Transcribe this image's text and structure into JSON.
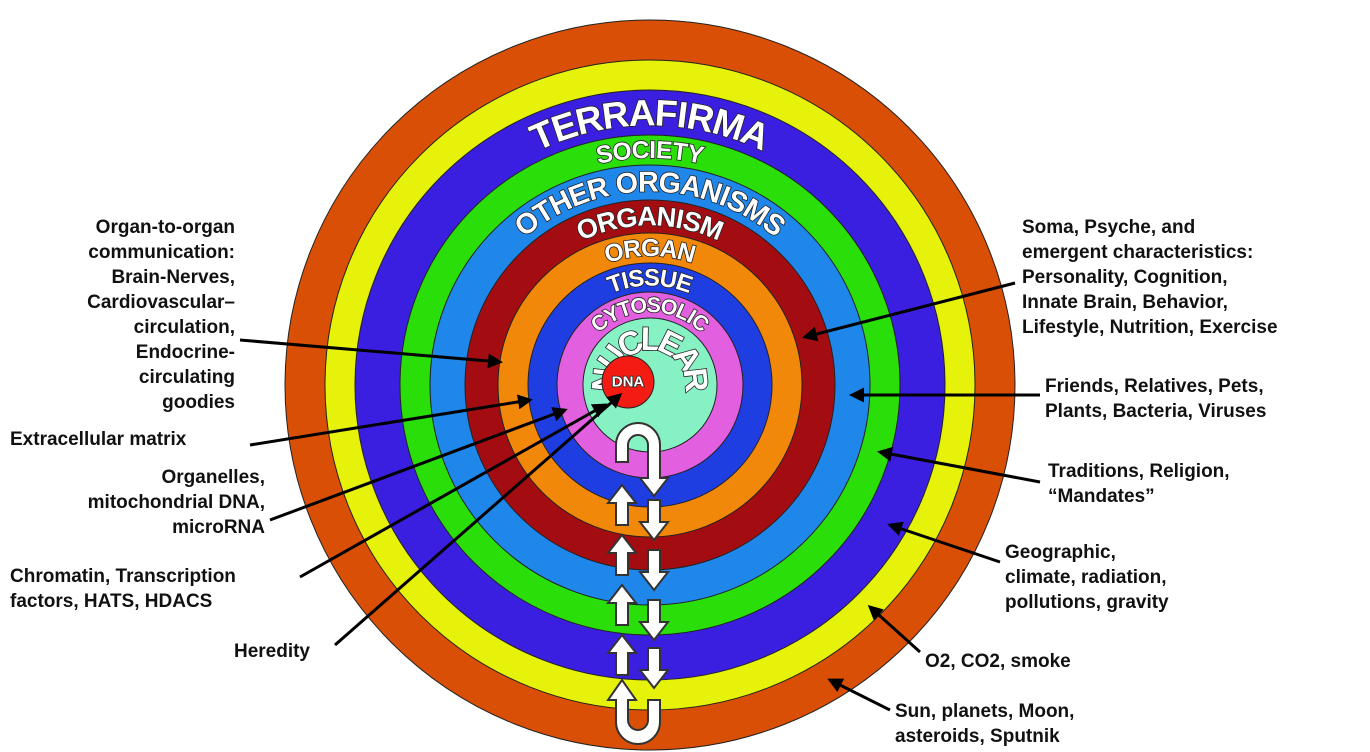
{
  "rings": [
    {
      "color": "#d94f06"
    },
    {
      "color": "#e6f20a"
    },
    {
      "label": "TERRAFIRMA",
      "color": "#3b1fe0"
    },
    {
      "label": "SOCIETY",
      "color": "#2ade0a"
    },
    {
      "label": "OTHER ORGANISMS",
      "color": "#1f86ea"
    },
    {
      "label": "ORGANISM",
      "color": "#a30d12"
    },
    {
      "label": "ORGAN",
      "color": "#f2880a"
    },
    {
      "label": "TISSUE",
      "color": "#1f3ee2"
    },
    {
      "label": "CYTOSOLIC",
      "color": "#e25fe0"
    },
    {
      "label": "NUCLEAR",
      "color": "#86f2c4"
    }
  ],
  "center": {
    "label": "DNA",
    "color": "#f41b12"
  },
  "annotations": [
    {
      "lines": [
        "Organ-to-organ",
        "communication:",
        "Brain-Nerves,",
        "Cardiovascular–",
        "circulation,",
        "Endocrine-",
        "circulating",
        "goodies"
      ]
    },
    {
      "lines": [
        "Extracellular matrix"
      ]
    },
    {
      "lines": [
        "Organelles,",
        "mitochondrial DNA,",
        "microRNA"
      ]
    },
    {
      "lines": [
        "Chromatin, Transcription",
        "factors, HATS, HDACS"
      ]
    },
    {
      "lines": [
        "Heredity"
      ]
    },
    {
      "lines": [
        "Soma, Psyche, and",
        "emergent characteristics:",
        "Personality, Cognition,",
        "Innate Brain, Behavior,",
        "Lifestyle, Nutrition, Exercise"
      ]
    },
    {
      "lines": [
        "Friends, Relatives, Pets,",
        "Plants, Bacteria, Viruses"
      ]
    },
    {
      "lines": [
        "Traditions, Religion,",
        "“Mandates”"
      ]
    },
    {
      "lines": [
        "Geographic,",
        "climate, radiation,",
        "pollutions, gravity"
      ]
    },
    {
      "lines": [
        "O2, CO2, smoke"
      ]
    },
    {
      "lines": [
        "Sun, planets, Moon,",
        "asteroids, Sputnik"
      ]
    }
  ]
}
